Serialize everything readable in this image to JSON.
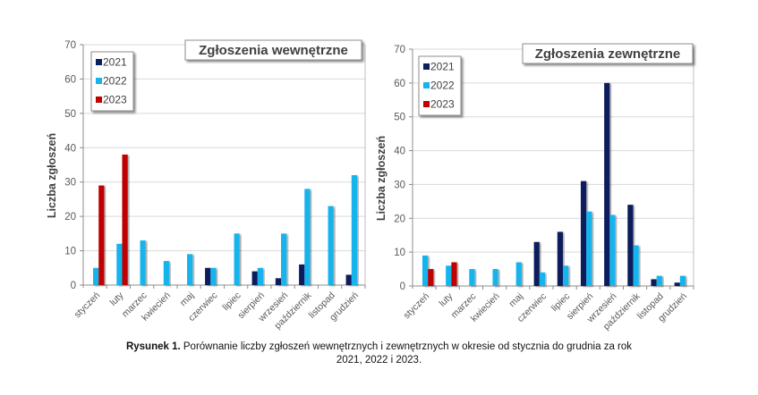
{
  "colors": {
    "2021": "#0b1f5c",
    "2022": "#14b4ec",
    "2023": "#c00000"
  },
  "caption": {
    "label": "Rysunek 1.",
    "text_line1": "Porównanie liczby zgłoszeń wewnętrznych i zewnętrznych w okresie od stycznia do grudnia za rok",
    "text_line2": "2021, 2022 i 2023."
  },
  "chart_data": [
    {
      "type": "bar",
      "title": "Zgłoszenia wewnętrzne",
      "ylabel": "Liczba zgłoszeń",
      "xlabel": "",
      "ylim": [
        0,
        70
      ],
      "yticks": [
        0,
        10,
        20,
        30,
        40,
        50,
        60,
        70
      ],
      "grid": true,
      "legend": "top-left",
      "categories": [
        "styczeń",
        "luty",
        "marzec",
        "kwiecień",
        "maj",
        "czerwiec",
        "lipiec",
        "sierpień",
        "wrzesień",
        "październik",
        "listopad",
        "grudzień"
      ],
      "series": [
        {
          "name": "2021",
          "values": [
            0,
            0,
            0,
            0,
            0,
            5,
            0,
            4,
            2,
            6,
            0,
            3
          ]
        },
        {
          "name": "2022",
          "values": [
            5,
            12,
            13,
            7,
            9,
            5,
            15,
            5,
            15,
            28,
            23,
            32
          ]
        },
        {
          "name": "2023",
          "values": [
            29,
            38,
            0,
            0,
            0,
            0,
            0,
            0,
            0,
            0,
            0,
            0
          ]
        }
      ]
    },
    {
      "type": "bar",
      "title": "Zgłoszenia zewnętrzne",
      "ylabel": "Liczba zgłoszeń",
      "xlabel": "",
      "ylim": [
        0,
        70
      ],
      "yticks": [
        0,
        10,
        20,
        30,
        40,
        50,
        60,
        70
      ],
      "grid": true,
      "legend": "top-left",
      "categories": [
        "styczeń",
        "luty",
        "marzec",
        "kwiecień",
        "maj",
        "czerwiec",
        "lipiec",
        "sierpień",
        "wrzesień",
        "październik",
        "listopad",
        "grudzień"
      ],
      "series": [
        {
          "name": "2021",
          "values": [
            0,
            0,
            0,
            0,
            0,
            13,
            16,
            31,
            60,
            24,
            2,
            1
          ]
        },
        {
          "name": "2022",
          "values": [
            9,
            6,
            5,
            5,
            7,
            4,
            6,
            22,
            21,
            12,
            3,
            3
          ]
        },
        {
          "name": "2023",
          "values": [
            5,
            7,
            0,
            0,
            0,
            0,
            0,
            0,
            0,
            0,
            0,
            0
          ]
        }
      ]
    }
  ]
}
